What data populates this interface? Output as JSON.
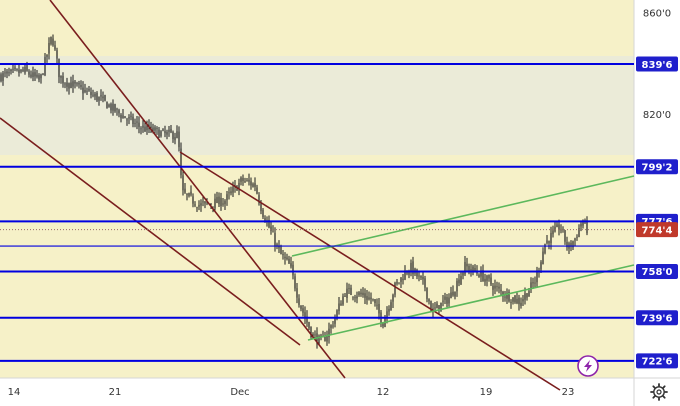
{
  "chart_data": {
    "type": "candlestick",
    "y_axis": {
      "ticks": [
        860.0,
        820.0
      ],
      "tick_labels": [
        "860'0",
        "820'0"
      ],
      "range": [
        716,
        865
      ]
    },
    "x_axis": {
      "tick_labels": [
        "14",
        "21",
        "Dec",
        "12",
        "19",
        "23"
      ]
    },
    "horizontal_levels": [
      {
        "value": 839.75,
        "label": "839'6",
        "tagged": true
      },
      {
        "value": 799.25,
        "label": "799'2",
        "tagged": true
      },
      {
        "value": 777.75,
        "label": "777'6",
        "tagged": true
      },
      {
        "value": 768.0,
        "label": "",
        "tagged": false
      },
      {
        "value": 758.0,
        "label": "758'0",
        "tagged": true
      },
      {
        "value": 739.75,
        "label": "739'6",
        "tagged": true
      },
      {
        "value": 722.75,
        "label": "722'6",
        "tagged": true
      }
    ],
    "last_price": {
      "value": 774.5,
      "label": "774'4"
    },
    "colors": {
      "plot_bg": "#f6f1c8",
      "band_bg": "#ebebd8",
      "level_line": "#0000e0",
      "channel_line": "#7a1e1e",
      "support_line": "#5cb85c",
      "candle": "#1a1a1a",
      "tag_bg": "#1f1fcc",
      "last_tag_bg": "#c0392b",
      "flash_icon": "#8e24aa"
    },
    "icons": [
      "flash-icon",
      "settings-gear-icon"
    ]
  }
}
